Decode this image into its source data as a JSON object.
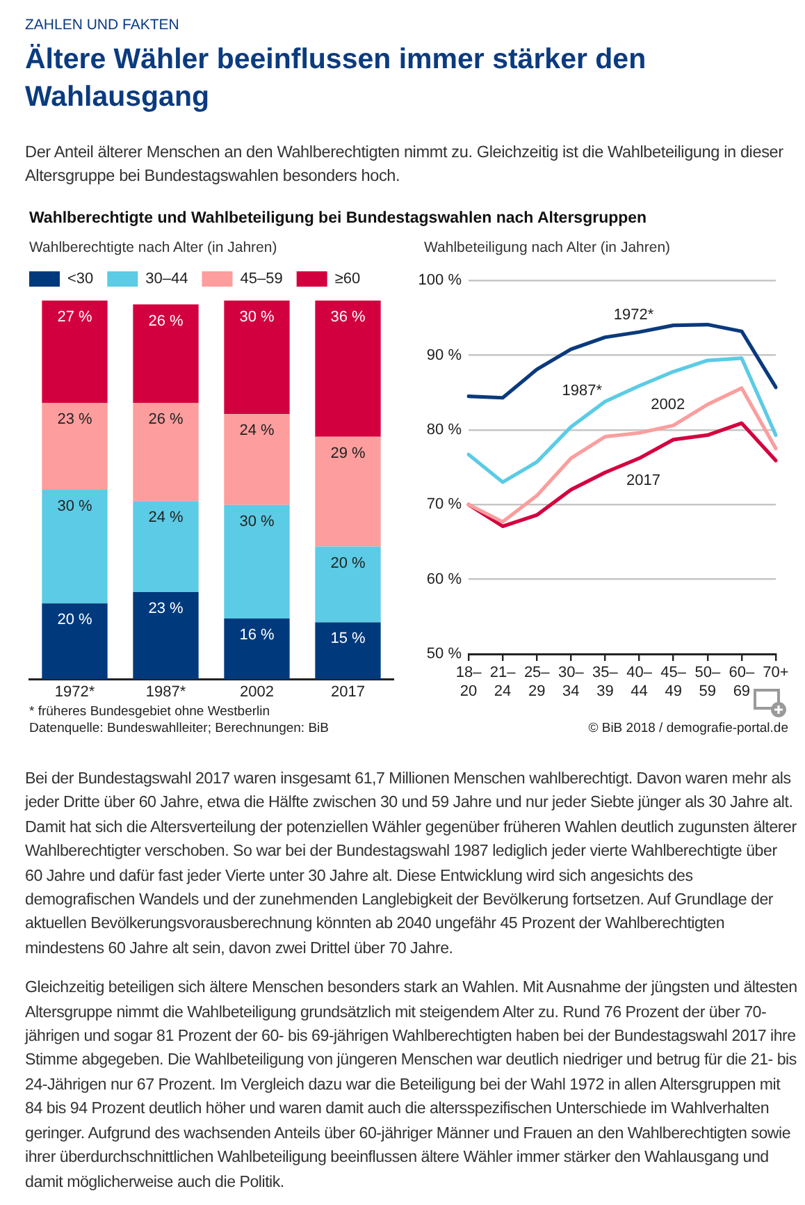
{
  "chart_data": [
    {
      "type": "other",
      "title": "Ältere Wähler beeinflussen immer stärker den Wahlausgang",
      "subtitle": "Der Anteil älterer Menschen an den Wahlberechtigten nimmt zu. Gleichzeitig ist die Wahlbeteiligung in dieser Altersgruppe bei Bundestagswahlen besonders hoch.",
      "annotations": [
        "ZAHLEN UND FAKTEN"
      ]
    },
    {
      "type": "bar",
      "title": "Wahlberechtigte und Wahlbeteiligung bei Bundestagswahlen nach Altersgruppen",
      "subtitle": "Wahlberechtigte nach Alter (in Jahren)",
      "categories": [
        "1972*",
        "1987*",
        "2002",
        "2017"
      ],
      "stacked": true,
      "ylim": [
        0,
        100
      ],
      "tick_labels": "x",
      "legend": "top left",
      "series": [
        {
          "name": "<30",
          "color": "#003a7d",
          "values": [
            20,
            23,
            16,
            15
          ],
          "value_labels": [
            "20 %",
            "23 %",
            "16 %",
            "15 %"
          ]
        },
        {
          "name": "30–44",
          "color": "#5ccbe5",
          "values": [
            30,
            24,
            30,
            20
          ],
          "value_labels": [
            "30 %",
            "24 %",
            "30 %",
            "20 %"
          ]
        },
        {
          "name": "45–59",
          "color": "#fd9d9d",
          "values": [
            23,
            26,
            24,
            29
          ],
          "value_labels": [
            "23 %",
            "26 %",
            "24 %",
            "29 %"
          ]
        },
        {
          "name": "≥60",
          "color": "#d3003f",
          "values": [
            27,
            26,
            30,
            36
          ],
          "value_labels": [
            "27 %",
            "26 %",
            "30 %",
            "36 %"
          ]
        }
      ],
      "annotations": [
        "* früheres Bundesgebiet ohne Westberlin",
        "Datenquelle: Bundeswahlleiter; Berechnungen: BiB"
      ]
    },
    {
      "type": "line",
      "title": "Wahlbeteiligung nach Alter (in Jahren)",
      "categories": [
        "18–20",
        "21–24",
        "25–29",
        "30–34",
        "35–39",
        "40–44",
        "45–49",
        "50–59",
        "60–69",
        "70+"
      ],
      "ylim": [
        50,
        100
      ],
      "yticks": [
        {
          "value": 50,
          "label": "50 %"
        },
        {
          "value": 60,
          "label": "60 %"
        },
        {
          "value": 70,
          "label": "70 %"
        },
        {
          "value": 80,
          "label": "80 %"
        },
        {
          "value": 90,
          "label": "90 %"
        },
        {
          "value": 100,
          "label": "100 %"
        }
      ],
      "grid": "y",
      "marker": "none",
      "series": [
        {
          "name": "1972*",
          "color": "#0a3a7c",
          "values": [
            84.5,
            84.3,
            88.1,
            90.8,
            92.4,
            93.1,
            94.0,
            94.1,
            93.2,
            85.7
          ]
        },
        {
          "name": "1987*",
          "color": "#5ccbe5",
          "values": [
            76.7,
            73.0,
            75.7,
            80.4,
            83.8,
            85.9,
            87.8,
            89.3,
            89.6,
            79.3
          ]
        },
        {
          "name": "2002",
          "color": "#fa9e9e",
          "values": [
            70.0,
            67.7,
            71.2,
            76.2,
            79.1,
            79.6,
            80.6,
            83.4,
            85.6,
            77.5
          ]
        },
        {
          "name": "2017",
          "color": "#d3003f",
          "values": [
            70.0,
            67.1,
            68.6,
            72.0,
            74.3,
            76.2,
            78.7,
            79.3,
            80.9,
            75.9
          ]
        }
      ],
      "annotations": [
        "© BiB 2018 / demografie-portal.de"
      ]
    },
    {
      "type": "other",
      "annotations": [
        "Bei der Bundestagswahl 2017 waren insgesamt 61,7 Millionen Menschen wahlberechtigt. Davon waren mehr als jeder Dritte über 60 Jahre, etwa die Hälfte zwischen 30 und 59 Jahre und nur jeder Siebte jünger als 30 Jahre alt. Damit hat sich die Altersverteilung der potenziellen Wähler gegenüber früheren Wahlen deutlich zugunsten älterer Wahlberechtigter verschoben. So war bei der Bundestagswahl 1987 lediglich jeder vierte Wahlberechtigte über 60 Jahre und dafür fast jeder Vierte unter 30 Jahre alt. Diese Entwicklung wird sich angesichts des demografischen Wandels und der zunehmenden Langlebigkeit der Bevölkerung fortsetzen. Auf Grundlage der aktuellen Bevölkerungsvorausberechnung könnten ab 2040 ungefähr 45 Prozent der Wahlberechtigten mindestens 60 Jahre alt sein, davon zwei Drittel über 70 Jahre.",
        "Gleichzeitig beteiligen sich ältere Menschen besonders stark an Wahlen. Mit Ausnahme der jüngsten und ältesten Altersgruppe nimmt die Wahlbeteiligung grundsätzlich mit steigendem Alter zu. Rund 76 Prozent der über 70-jährigen und sogar 81 Prozent der 60- bis 69-jährigen Wahlberechtigten haben bei der Bundestagswahl 2017 ihre Stimme abgegeben. Die Wahlbeteiligung von jüngeren Menschen war deutlich niedriger und betrug für die 21- bis 24-Jährigen nur 67 Prozent. Im Vergleich dazu war die Beteiligung bei der Wahl 1972 in allen Altersgruppen mit 84 bis 94 Prozent deutlich höher und waren damit auch die altersspezifischen Unterschiede im Wahlverhalten geringer. Aufgrund des wachsenden Anteils über 60-jähriger Männer und Frauen an den Wahlberechtigten sowie ihrer überdurchschnittlichen Wahlbeteiligung beeinflussen ältere Wähler immer stärker den Wahlausgang und damit möglicherweise auch die Politik."
      ]
    }
  ]
}
